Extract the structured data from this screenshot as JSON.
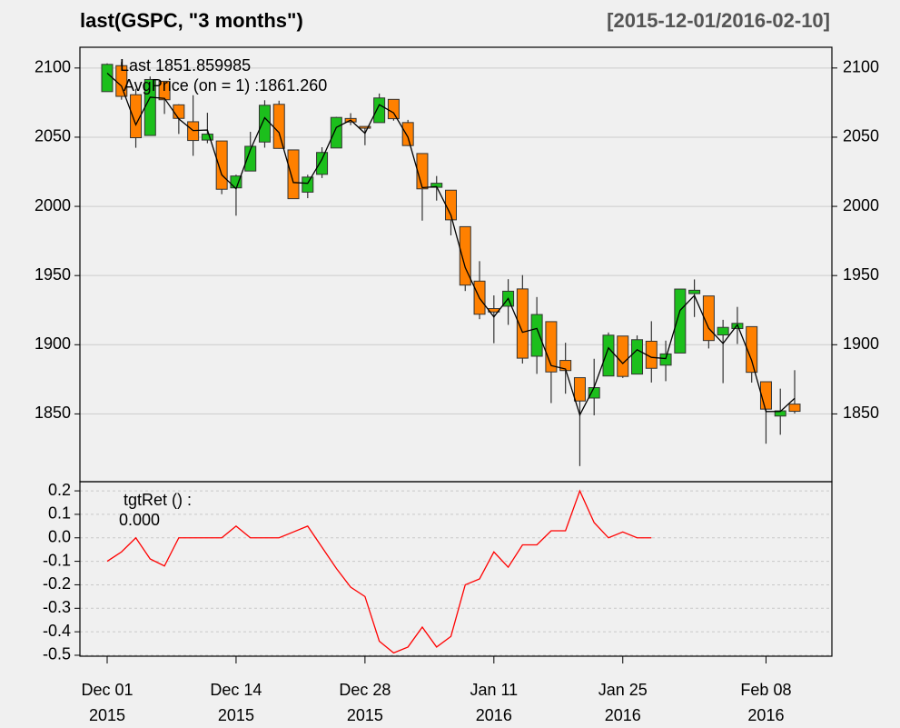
{
  "chart_data": [
    {
      "type": "candlestick",
      "title": "last(GSPC, \"3 months\")",
      "subtitle": "[2015-12-01/2016-02-10]",
      "x": [
        "2015-12-01",
        "2015-12-02",
        "2015-12-03",
        "2015-12-04",
        "2015-12-07",
        "2015-12-08",
        "2015-12-09",
        "2015-12-10",
        "2015-12-11",
        "2015-12-14",
        "2015-12-15",
        "2015-12-16",
        "2015-12-17",
        "2015-12-18",
        "2015-12-21",
        "2015-12-22",
        "2015-12-23",
        "2015-12-24",
        "2015-12-28",
        "2015-12-29",
        "2015-12-30",
        "2015-12-31",
        "2016-01-04",
        "2016-01-05",
        "2016-01-06",
        "2016-01-07",
        "2016-01-08",
        "2016-01-11",
        "2016-01-12",
        "2016-01-13",
        "2016-01-14",
        "2016-01-15",
        "2016-01-19",
        "2016-01-20",
        "2016-01-21",
        "2016-01-22",
        "2016-01-25",
        "2016-01-26",
        "2016-01-27",
        "2016-01-28",
        "2016-01-29",
        "2016-02-01",
        "2016-02-02",
        "2016-02-03",
        "2016-02-04",
        "2016-02-05",
        "2016-02-08",
        "2016-02-09",
        "2016-02-10"
      ],
      "open": [
        2082.93,
        2101.71,
        2080.71,
        2051.24,
        2090.42,
        2073.39,
        2061.17,
        2047.93,
        2047.27,
        2013.37,
        2025.55,
        2046.5,
        2073.76,
        2040.81,
        2010.27,
        2023.15,
        2042.2,
        2063.52,
        2057.77,
        2060.54,
        2077.34,
        2060.59,
        2038.2,
        2013.78,
        2011.71,
        1985.32,
        1945.97,
        1926.12,
        1927.83,
        1940.34,
        1891.68,
        1916.68,
        1888.66,
        1876.18,
        1861.46,
        1877.4,
        1906.28,
        1878.79,
        1902.52,
        1885.22,
        1894,
        1936.94,
        1935.26,
        1907.07,
        1911.67,
        1913.07,
        1873.25,
        1848.46,
        1857.1
      ],
      "high": [
        2103.37,
        2104.27,
        2085,
        2093.84,
        2090.42,
        2073.85,
        2080.33,
        2067.65,
        2047.27,
        2022.92,
        2053.87,
        2076.72,
        2076.37,
        2040.81,
        2022.9,
        2042.74,
        2064.73,
        2067.36,
        2057.77,
        2081.56,
        2077.34,
        2062.54,
        2038.2,
        2021.94,
        2011.71,
        1985.32,
        1960.4,
        1935.65,
        1947.38,
        1950.33,
        1934.47,
        1916.68,
        1901.44,
        1876.18,
        1889.85,
        1908.85,
        1906.28,
        1906.73,
        1916.99,
        1902.96,
        1940.24,
        1947.2,
        1935.26,
        1918.01,
        1927.35,
        1913.07,
        1873.25,
        1868.25,
        1881.6
      ],
      "low": [
        2082.93,
        2077.11,
        2042.35,
        2051.24,
        2066.78,
        2052.32,
        2036.53,
        2045.67,
        2008.8,
        1993.26,
        2025.55,
        2042.43,
        2041.66,
        2005.33,
        2005.93,
        2020.49,
        2042.2,
        2058.73,
        2044.2,
        2060.54,
        2061.97,
        2043.62,
        1989.68,
        2004.17,
        1979.05,
        1938.83,
        1918.46,
        1901.1,
        1914.35,
        1886.41,
        1878.93,
        1857.83,
        1864.6,
        1812.29,
        1848.98,
        1877.4,
        1875.97,
        1878.79,
        1872.7,
        1873.65,
        1894,
        1920.03,
        1897.29,
        1872.23,
        1900.52,
        1872.65,
        1828.46,
        1834.94,
        1850.32
      ],
      "close": [
        2102.63,
        2079.51,
        2049.62,
        2091.69,
        2077.07,
        2063.59,
        2047.62,
        2052.23,
        2012.37,
        2021.94,
        2043.41,
        2073.07,
        2041.89,
        2005.55,
        2021.15,
        2038.97,
        2064.29,
        2060.99,
        2056.5,
        2078.36,
        2063.36,
        2043.94,
        2012.66,
        2016.71,
        1990.26,
        1943.09,
        1922.03,
        1923.67,
        1938.68,
        1890.28,
        1921.84,
        1880.33,
        1881.33,
        1859.33,
        1868.99,
        1906.9,
        1877.08,
        1903.63,
        1882.95,
        1893.36,
        1940.24,
        1939.38,
        1903.03,
        1912.53,
        1915.45,
        1880.05,
        1853.44,
        1852.21,
        1851.86
      ],
      "up_color": "#1cbf1c",
      "down_color": "#ff8000",
      "last_label": "Last 1851.859985",
      "last_label_color": "#ff8000",
      "overlay": {
        "name": "AvgPrice (on = 1) :1861.260",
        "color": "#000000",
        "values": [
          2096.31,
          2086.96,
          2058.99,
          2078.92,
          2078.09,
          2063.25,
          2054.83,
          2055.18,
          2022.81,
          2012.71,
          2040.94,
          2064.07,
          2053.31,
          2017.23,
          2016.66,
          2034.07,
          2057.07,
          2062.36,
          2052.82,
          2073.49,
          2067.56,
          2050.03,
          2013.51,
          2014.27,
          1993.67,
          1955.75,
          1933.63,
          1920.14,
          1933.47,
          1909.01,
          1911.75,
          1884.95,
          1882.46,
          1849.27,
          1869.27,
          1897.72,
          1886.44,
          1896.38,
          1890.88,
          1889.99,
          1924.83,
          1935.54,
          1911.86,
          1900.92,
          1914.44,
          1888.59,
          1851.72,
          1851.8,
          1861.26
        ]
      },
      "ylim": [
        1801,
        2115
      ],
      "yticks": [
        1850,
        1900,
        1950,
        2000,
        2050,
        2100
      ],
      "grid": true
    },
    {
      "type": "line",
      "x": [
        "2015-12-01",
        "2015-12-02",
        "2015-12-03",
        "2015-12-04",
        "2015-12-07",
        "2015-12-08",
        "2015-12-09",
        "2015-12-10",
        "2015-12-11",
        "2015-12-14",
        "2015-12-15",
        "2015-12-16",
        "2015-12-17",
        "2015-12-18",
        "2015-12-21",
        "2015-12-22",
        "2015-12-23",
        "2015-12-24",
        "2015-12-28",
        "2015-12-29",
        "2015-12-30",
        "2015-12-31",
        "2016-01-04",
        "2016-01-05",
        "2016-01-06",
        "2016-01-07",
        "2016-01-08",
        "2016-01-11",
        "2016-01-12",
        "2016-01-13",
        "2016-01-14",
        "2016-01-15",
        "2016-01-19",
        "2016-01-20",
        "2016-01-21",
        "2016-01-22",
        "2016-01-25",
        "2016-01-26",
        "2016-01-27",
        "2016-01-28",
        "2016-01-29",
        "2016-02-01",
        "2016-02-02",
        "2016-02-03",
        "2016-02-04",
        "2016-02-05",
        "2016-02-08",
        "2016-02-09",
        "2016-02-10"
      ],
      "series": [
        {
          "name": "tgtRet () :",
          "color": "#ff0000",
          "values": [
            -0.1,
            -0.06,
            0,
            -0.09,
            -0.12,
            0,
            0,
            0,
            0,
            0.05,
            0,
            0,
            0,
            0.025,
            0.05,
            -0.04,
            -0.13,
            -0.21,
            -0.25,
            -0.44,
            -0.49,
            -0.465,
            -0.38,
            -0.465,
            -0.42,
            -0.2,
            -0.175,
            -0.06,
            -0.125,
            -0.03,
            -0.03,
            0.03,
            0.03,
            0.2,
            0.065,
            0,
            0.025,
            0,
            0,
            null,
            null,
            null,
            null,
            null,
            null,
            null,
            null,
            null,
            null
          ]
        }
      ],
      "value_label": "0.000",
      "ylim": [
        -0.504,
        0.239
      ],
      "yticks": [
        -0.5,
        -0.4,
        -0.3,
        -0.2,
        -0.1,
        {
          "value": 0,
          "label": "0.0"
        },
        0.1,
        0.2
      ],
      "xticks": [
        {
          "value": "2015-12-01",
          "label": "Dec 01\n2015"
        },
        {
          "value": "2015-12-14",
          "label": "Dec 14\n2015"
        },
        {
          "value": "2015-12-28",
          "label": "Dec 28\n2015"
        },
        {
          "value": "2016-01-11",
          "label": "Jan 11\n2016"
        },
        {
          "value": "2016-01-25",
          "label": "Jan 25\n2016"
        },
        {
          "value": "2016-02-08",
          "label": "Feb 08\n2016"
        }
      ],
      "grid": true
    }
  ]
}
